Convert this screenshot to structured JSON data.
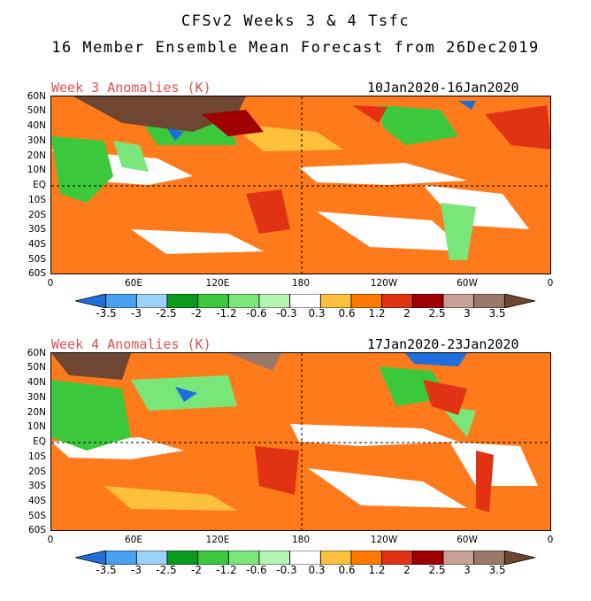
{
  "title_line1": "CFSv2 Weeks 3 & 4 Tsfc",
  "title_line2": "16 Member Ensemble Mean Forecast from 26Dec2019",
  "panels": [
    {
      "label": "Week 3 Anomalies (K)",
      "dates": "10Jan2020-16Jan2020"
    },
    {
      "label": "Week 4 Anomalies (K)",
      "dates": "17Jan2020-23Jan2020"
    }
  ],
  "lat_labels": [
    "60N",
    "50N",
    "40N",
    "30N",
    "20N",
    "10N",
    "EQ",
    "10S",
    "20S",
    "30S",
    "40S",
    "50S",
    "60S"
  ],
  "lon_labels": [
    "0",
    "60E",
    "120E",
    "180",
    "120W",
    "60W",
    "0"
  ],
  "colorbar": {
    "labels": [
      "-3.5",
      "-3",
      "-2.5",
      "-2",
      "-1.2",
      "-0.6",
      "-0.3",
      "0.3",
      "0.6",
      "1.2",
      "2",
      "2.5",
      "3",
      "3.5"
    ],
    "colors": [
      "#1e6fdc",
      "#4aa0f0",
      "#9ad2f8",
      "#0a9a1e",
      "#3cc83c",
      "#78e678",
      "#b4f5b4",
      "#ffffff",
      "#ffc03c",
      "#ff7800",
      "#e13214",
      "#a00000",
      "#c8a096",
      "#9c786a",
      "#6e4632"
    ]
  },
  "colors": {
    "week_label": "#e05050"
  }
}
